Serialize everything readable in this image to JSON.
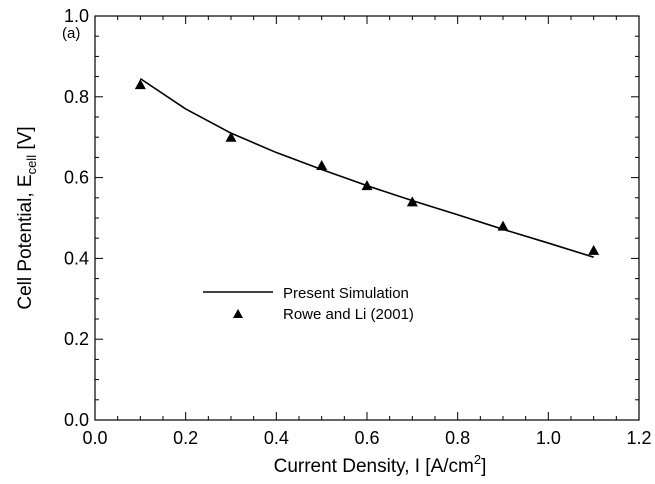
{
  "chart_data": {
    "type": "line",
    "panel_label": "(a)",
    "xlabel": {
      "main": "Current Density, I [A/cm",
      "sup": "2",
      "end": "]"
    },
    "ylabel": {
      "main": "Cell Potential, E",
      "sub": "cell",
      "end": " [V]"
    },
    "xlim": [
      0.0,
      1.2
    ],
    "ylim": [
      0.0,
      1.0
    ],
    "xticks": [
      0.0,
      0.2,
      0.4,
      0.6,
      0.8,
      1.0,
      1.2
    ],
    "yticks": [
      0.0,
      0.2,
      0.4,
      0.6,
      0.8,
      1.0
    ],
    "x_tick_labels": [
      "0.0",
      "0.2",
      "0.4",
      "0.6",
      "0.8",
      "1.0",
      "1.2"
    ],
    "y_tick_labels": [
      "0.0",
      "0.2",
      "0.4",
      "0.6",
      "0.8",
      "1.0"
    ],
    "grid": false,
    "legend_position": "center-left",
    "series": [
      {
        "name": "Present Simulation",
        "style": "line",
        "color": "#000000",
        "x": [
          0.1,
          0.2,
          0.3,
          0.4,
          0.5,
          0.6,
          0.7,
          0.8,
          0.9,
          1.0,
          1.1
        ],
        "y": [
          0.845,
          0.77,
          0.71,
          0.662,
          0.62,
          0.58,
          0.543,
          0.508,
          0.472,
          0.438,
          0.403
        ]
      },
      {
        "name": "Rowe and Li (2001)",
        "style": "marker-triangle",
        "color": "#000000",
        "x": [
          0.1,
          0.3,
          0.5,
          0.6,
          0.7,
          0.9,
          1.1
        ],
        "y": [
          0.83,
          0.7,
          0.63,
          0.58,
          0.54,
          0.48,
          0.42
        ]
      }
    ]
  }
}
